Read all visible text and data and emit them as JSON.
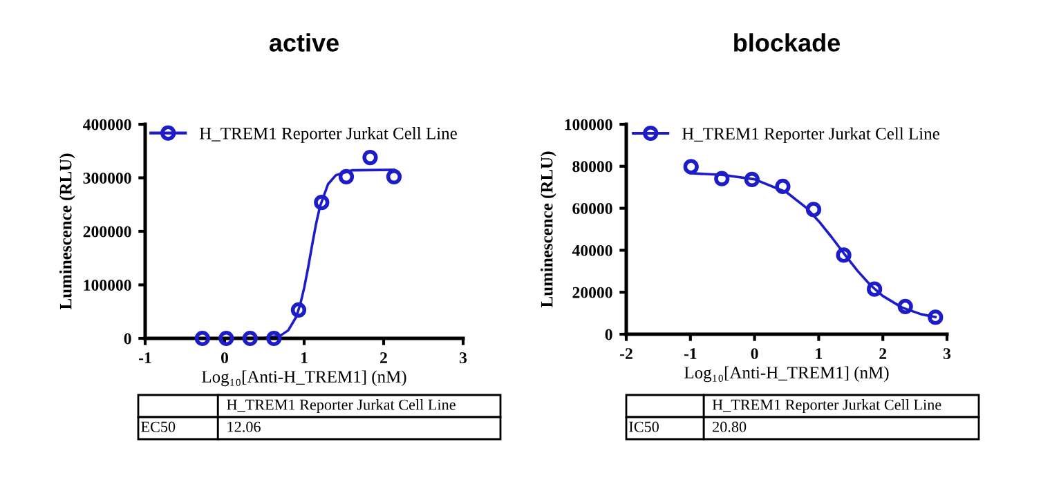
{
  "chart_data": [
    {
      "type": "scatter",
      "title": "active",
      "xlabel": "Log₁₀[Anti-H_TREM1] (nM)",
      "ylabel": "Luminescence (RLU)",
      "xlim": [
        -1,
        3
      ],
      "xticks": [
        -1,
        0,
        1,
        2,
        3
      ],
      "ylim": [
        0,
        400000
      ],
      "yticks": [
        0,
        100000,
        200000,
        300000,
        400000
      ],
      "grid": false,
      "legend": "top",
      "marker": "circle",
      "series": [
        {
          "name": "H_TREM1 Reporter Jurkat Cell Line",
          "color": "#1c1cc8",
          "x": [
            -0.28,
            0.02,
            0.32,
            0.62,
            0.93,
            1.22,
            1.53,
            1.83,
            2.13
          ],
          "values": [
            0,
            0,
            0,
            0,
            53000,
            254000,
            302000,
            338000,
            302000
          ]
        },
        {
          "type": "line",
          "marker": "none",
          "color": "#1c1cc8",
          "x": [
            -0.28,
            0.5,
            0.7,
            0.8,
            0.9,
            0.95,
            1.0,
            1.05,
            1.1,
            1.15,
            1.2,
            1.3,
            1.4,
            1.6,
            2.13
          ],
          "values": [
            0,
            1000,
            5000,
            15000,
            40000,
            63000,
            94000,
            132000,
            174000,
            214000,
            247000,
            288000,
            305000,
            314000,
            315000
          ]
        }
      ],
      "annotations": [
        "H_TREM1 Reporter Jurkat Cell Line",
        "EC50",
        "12.06"
      ]
    },
    {
      "type": "scatter",
      "title": "blockade",
      "xlabel": "Log₁₀[Anti-H_TREM1] (nM)",
      "ylabel": "Luminescence (RLU)",
      "xlim": [
        -2,
        3
      ],
      "xticks": [
        -2,
        -1,
        0,
        1,
        2,
        3
      ],
      "ylim": [
        0,
        100000
      ],
      "yticks": [
        0,
        20000,
        40000,
        60000,
        80000,
        100000
      ],
      "grid": false,
      "legend": "top",
      "marker": "circle",
      "series": [
        {
          "name": "H_TREM1 Reporter Jurkat Cell Line",
          "color": "#1c1cc8",
          "x": [
            -0.99,
            -0.51,
            -0.04,
            0.44,
            0.92,
            1.39,
            1.87,
            2.35,
            2.82
          ],
          "values": [
            79800,
            74100,
            73700,
            70400,
            59400,
            37700,
            21500,
            13200,
            8100
          ]
        },
        {
          "type": "line",
          "marker": "none",
          "color": "#1c1cc8",
          "x": [
            -1,
            -0.5,
            0,
            0.5,
            0.8,
            1.0,
            1.2,
            1.4,
            1.6,
            1.8,
            2.0,
            2.3,
            2.6,
            2.82
          ],
          "values": [
            76700,
            75900,
            73800,
            67600,
            60400,
            53900,
            46300,
            38200,
            30400,
            23600,
            18200,
            12700,
            9500,
            8200
          ]
        }
      ],
      "annotations": [
        "H_TREM1 Reporter Jurkat Cell Line",
        "IC50",
        "20.80"
      ]
    }
  ]
}
